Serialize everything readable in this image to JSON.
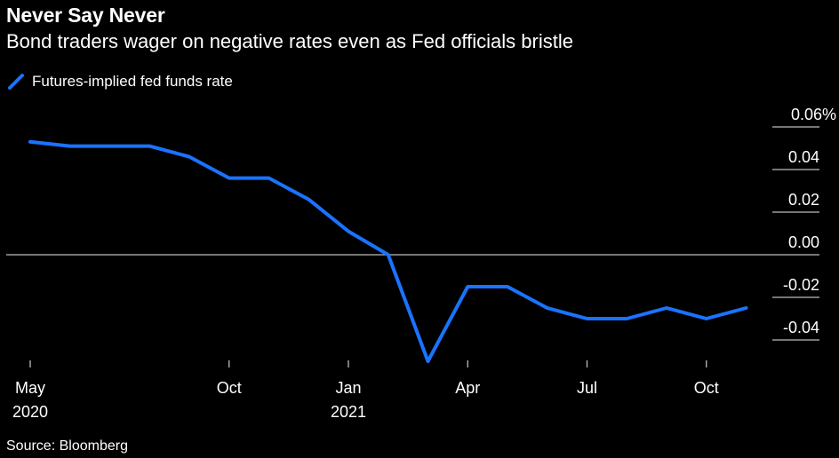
{
  "chart_data": {
    "type": "line",
    "title": "Never Say Never",
    "subtitle": "Bond traders wager on negative rates even as Fed officials bristle",
    "source": "Source: Bloomberg",
    "legend": [
      {
        "name": "Futures-implied fed funds rate",
        "color": "#1a73ff"
      }
    ],
    "legend_position": "top-left",
    "xlabel": "",
    "ylabel": "",
    "x": [
      "2020-05",
      "2020-06",
      "2020-07",
      "2020-08",
      "2020-09",
      "2020-10",
      "2020-11",
      "2020-12",
      "2021-01",
      "2021-02",
      "2021-03",
      "2021-04",
      "2021-05",
      "2021-06",
      "2021-07",
      "2021-08",
      "2021-09",
      "2021-10",
      "2021-11",
      "2021-12"
    ],
    "series": [
      {
        "name": "Futures-implied fed funds rate",
        "color": "#1a73ff",
        "values": [
          0.053,
          0.051,
          0.051,
          0.051,
          0.046,
          0.036,
          0.036,
          0.026,
          0.011,
          0.0,
          -0.05,
          -0.015,
          -0.015,
          -0.025,
          -0.03,
          -0.03,
          -0.025,
          -0.03,
          -0.025,
          null
        ]
      }
    ],
    "x_ticks": [
      {
        "month": "2020-05",
        "label": "May",
        "sublabel": "2020"
      },
      {
        "month": "2020-10",
        "label": "Oct",
        "sublabel": ""
      },
      {
        "month": "2021-01",
        "label": "Jan",
        "sublabel": "2021"
      },
      {
        "month": "2021-04",
        "label": "Apr",
        "sublabel": ""
      },
      {
        "month": "2021-07",
        "label": "Jul",
        "sublabel": ""
      },
      {
        "month": "2021-10",
        "label": "Oct",
        "sublabel": ""
      }
    ],
    "y_ticks": [
      {
        "value": 0.06,
        "label": "0.06%"
      },
      {
        "value": 0.04,
        "label": "0.04"
      },
      {
        "value": 0.02,
        "label": "0.02"
      },
      {
        "value": 0.0,
        "label": "0.00"
      },
      {
        "value": -0.02,
        "label": "-0.02"
      },
      {
        "value": -0.04,
        "label": "-0.04"
      }
    ],
    "ylim": [
      -0.05,
      0.06
    ],
    "y_axis_side": "right",
    "zero_line": true,
    "grid": false
  }
}
